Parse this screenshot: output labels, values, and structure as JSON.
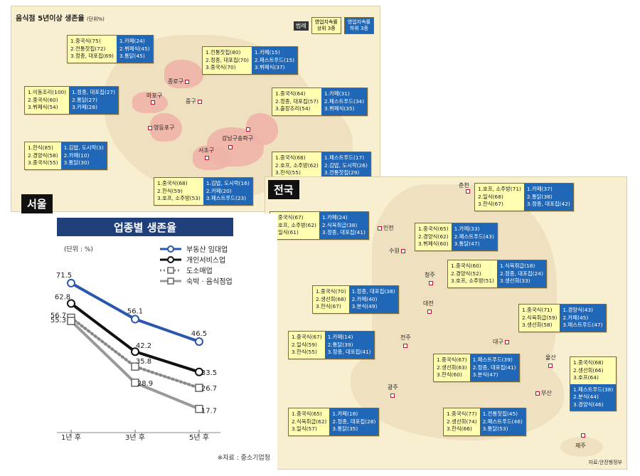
{
  "seoul_map": {
    "title": "음식점 5년이상 생존율",
    "unit": "(단위%)",
    "tag": "서울",
    "legend": {
      "label": "범례",
      "top": "영업지속률\n상위 3종",
      "bottom": "영업지속률\n하위 3종"
    },
    "districts": [
      "종로구",
      "마포구",
      "중구",
      "영등포구",
      "강남구",
      "송파구",
      "서초구"
    ],
    "pairs": [
      {
        "top": [
          "1.중국식(75)",
          "2.전통찻집(72)",
          "3.정종, 대포집(69)"
        ],
        "bottom": [
          "1.카페(24)",
          "2.뷔페식(45)",
          "3.통닭(45)"
        ]
      },
      {
        "top": [
          "1.전통찻집(80)",
          "2.정종, 대포집(70)",
          "3.중국식(70)"
        ],
        "bottom": [
          "1.카페(15)",
          "2.패스트푸드(15)",
          "3.뷔페식(37)"
        ]
      },
      {
        "top": [
          "1.이동조리(100)",
          "2.중국식(60)",
          "3.뷔페식(54)"
        ],
        "bottom": [
          "1.정종, 대포집(27)",
          "2.통닭(27)",
          "3.카페(28)"
        ]
      },
      {
        "top": [
          "1.중국식(64)",
          "2.정종, 대포집(57)",
          "3.출장조리(54)"
        ],
        "bottom": [
          "1.카페(31)",
          "2.패스트푸드(34)",
          "3.뷔페식(35)"
        ]
      },
      {
        "top": [
          "1.한식(85)",
          "2.경양식(58)",
          "3.중국식(55)"
        ],
        "bottom": [
          "1.김밥, 도시락(3)",
          "2.카페(10)",
          "3.통닭(30)"
        ]
      },
      {
        "top": [
          "1.중국식(68)",
          "2.호프, 소주방(62)",
          "3.한식(55)"
        ],
        "bottom": [
          "1.패스트푸드(17)",
          "2.김밥, 도시락(26)",
          "3.전통찻집(29)"
        ]
      },
      {
        "top": [
          "1.중국식(68)",
          "2.한식(59)",
          "3.호프, 소주방(53)"
        ],
        "bottom": [
          "1.김밥, 도시락(16)",
          "2.카페(20)",
          "3.패스트푸드(23)"
        ]
      }
    ]
  },
  "national_map": {
    "tag": "전국",
    "cities": [
      "춘천",
      "인천",
      "수원",
      "청주",
      "대전",
      "전주",
      "대구",
      "울산",
      "광주",
      "부산",
      "제주"
    ],
    "source": "자료:안전행정부",
    "pairs": [
      {
        "top": [
          "1.호프, 소주방(71)",
          "2.일식(68)",
          "3.한식(67)"
        ],
        "bottom": [
          "1.카페(37)",
          "2.통닭(38)",
          "3.정종, 대포집(42)"
        ]
      },
      {
        "top": [
          "1.중국식(67)",
          "2.호프, 소주방(62)",
          "3.일식(61)"
        ],
        "bottom": [
          "1.카페(24)",
          "2.식육취급(38)",
          "3.정종, 대포집(41)"
        ]
      },
      {
        "top": [
          "1.중국식(65)",
          "2.경양식(62)",
          "3.뷔페식(60)"
        ],
        "bottom": [
          "1.카페(33)",
          "2.패스트푸드(43)",
          "3.통닭(47)"
        ]
      },
      {
        "top": [
          "1.중국식(60)",
          "2.경양식(52)",
          "3.호프, 소주방(51)"
        ],
        "bottom": [
          "1.식육취급(18)",
          "2.정종, 대포집(24)",
          "3.생선회(33)"
        ]
      },
      {
        "top": [
          "1.중국식(70)",
          "2.생선회(68)",
          "3.한식(67)"
        ],
        "bottom": [
          "1.정종, 대포집(38)",
          "2.카페(40)",
          "3.분식(49)"
        ]
      },
      {
        "top": [
          "1.중국식(71)",
          "2.식육취급(59)",
          "3.생선회(58)"
        ],
        "bottom": [
          "1.경양식(43)",
          "2.카페(45)",
          "3.패스트푸드(47)"
        ]
      },
      {
        "top": [
          "1.중국식(67)",
          "2.일식(59)",
          "3.한식(55)"
        ],
        "bottom": [
          "1.카페(14)",
          "2.통닭(39)",
          "3.정종, 대포집(41)"
        ]
      },
      {
        "top": [
          "1.중국식(67)",
          "2.생선회(63)",
          "3.한식(60)"
        ],
        "bottom": [
          "1.패스트푸드(39)",
          "2.정종, 대포집(41)",
          "3.분식(47)"
        ]
      },
      {
        "top": [
          "1.중국식(68)",
          "2.생선회(66)",
          "3.호프(64)"
        ],
        "bottom": [
          "1.패스트푸드(38)",
          "2.분식(44)",
          "3.경양식(46)"
        ]
      },
      {
        "top": [
          "1.중국식(65)",
          "2.식육취급(62)",
          "3.일식(57)"
        ],
        "bottom": [
          "1.카페(18)",
          "2.정종, 대포집(28)",
          "3.통닭(35)"
        ]
      },
      {
        "top": [
          "1.중국식(77)",
          "2.생선회(74)",
          "3.한식(66)"
        ],
        "bottom": [
          "1.전통찻집(45)",
          "2.패스트푸드(46)",
          "3.통닭(53)"
        ]
      }
    ]
  },
  "chart_data": {
    "type": "line",
    "title": "업종별 생존율",
    "unit_label": "(단위 : %)",
    "categories": [
      "1년 후",
      "3년 후",
      "5년 후"
    ],
    "series": [
      {
        "name": "부동산 임대업",
        "values": [
          71.5,
          56.1,
          46.5
        ],
        "color": "#2a56b0",
        "marker": "circle-open",
        "style": "solid"
      },
      {
        "name": "개인서비스업",
        "values": [
          62.8,
          42.2,
          33.5
        ],
        "color": "#111111",
        "marker": "circle-open",
        "style": "solid"
      },
      {
        "name": "도소매업",
        "values": [
          56.7,
          35.8,
          26.7
        ],
        "color": "#888888",
        "marker": "square-open",
        "style": "dotted"
      },
      {
        "name": "숙박 · 음식점업",
        "values": [
          55.3,
          28.9,
          17.7
        ],
        "color": "#999999",
        "marker": "square-open",
        "style": "solid"
      }
    ],
    "source": "※자료 : 중소기업청",
    "legend_position": "top-right",
    "grid": false
  }
}
